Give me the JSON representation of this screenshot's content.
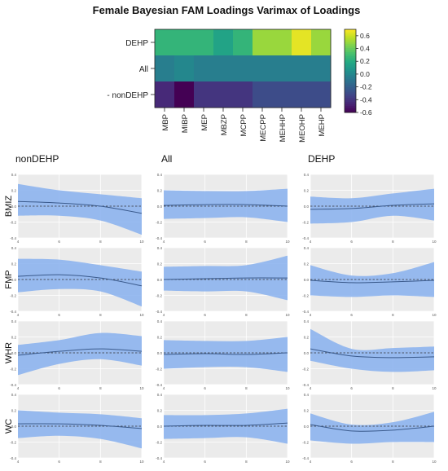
{
  "chart_data": [
    {
      "type": "heatmap",
      "title": "Female Bayesian FAM Loadings Varimax of Loadings",
      "rows": [
        "DEHP",
        "All",
        "nonDEHP"
      ],
      "columns": [
        "MBP",
        "MIBP",
        "MEP",
        "MBZP",
        "MCPP",
        "MECPP",
        "MEHHP",
        "MEOHP",
        "MEHP"
      ],
      "values": [
        [
          0.25,
          0.25,
          0.25,
          0.15,
          0.25,
          0.5,
          0.5,
          0.65,
          0.5
        ],
        [
          -0.05,
          0.0,
          -0.05,
          -0.05,
          -0.05,
          -0.05,
          -0.05,
          -0.05,
          -0.05
        ],
        [
          -0.45,
          -0.6,
          -0.4,
          -0.4,
          -0.4,
          -0.3,
          -0.3,
          -0.3,
          -0.3
        ]
      ],
      "colorbar": {
        "range": [
          -0.6,
          0.7
        ],
        "ticks": [
          "0.6",
          "0.4",
          "0.2",
          "0.0",
          "-0.2",
          "-0.4",
          "-0.6"
        ]
      },
      "colorscale": [
        "#440154",
        "#482475",
        "#414487",
        "#355f8d",
        "#2a788e",
        "#21918c",
        "#22a884",
        "#44bf70",
        "#7ad151",
        "#bddf26",
        "#fde725"
      ],
      "row_marker": "-"
    },
    {
      "type": "line",
      "description_of_bands": "mean curve with shaded credible band",
      "col_labels": [
        "nonDEHP",
        "All",
        "DEHP"
      ],
      "row_labels": [
        "BMIZ",
        "FMP",
        "WHR",
        "WC"
      ],
      "x": [
        4,
        6,
        8,
        10
      ],
      "x_ticks": [
        "4",
        "6",
        "8",
        "10"
      ],
      "ylim": [
        -0.4,
        0.4
      ],
      "y_ticks": [
        "0.4",
        "0.2",
        "0.0",
        "-0.2",
        "-0.4"
      ],
      "reference_line": 0,
      "band_color": "#8db4ee",
      "line_color": "#3a5a8c",
      "panels": [
        [
          {
            "mean": [
              0.06,
              0.04,
              0.0,
              -0.09
            ],
            "lower": [
              -0.12,
              -0.12,
              -0.18,
              -0.36
            ],
            "upper": [
              0.28,
              0.2,
              0.15,
              0.1
            ]
          },
          {
            "mean": [
              0.01,
              0.02,
              0.02,
              0.0
            ],
            "lower": [
              -0.16,
              -0.15,
              -0.14,
              -0.2
            ],
            "upper": [
              0.2,
              0.19,
              0.19,
              0.22
            ]
          },
          {
            "mean": [
              -0.04,
              -0.03,
              0.01,
              0.03
            ],
            "lower": [
              -0.22,
              -0.2,
              -0.12,
              -0.18
            ],
            "upper": [
              0.12,
              0.1,
              0.16,
              0.22
            ]
          }
        ],
        [
          {
            "mean": [
              0.04,
              0.06,
              0.02,
              -0.08
            ],
            "lower": [
              -0.16,
              -0.12,
              -0.15,
              -0.34
            ],
            "upper": [
              0.26,
              0.25,
              0.18,
              0.1
            ]
          },
          {
            "mean": [
              0.0,
              0.01,
              0.02,
              0.02
            ],
            "lower": [
              -0.14,
              -0.15,
              -0.15,
              -0.26
            ],
            "upper": [
              0.16,
              0.17,
              0.18,
              0.3
            ]
          },
          {
            "mean": [
              -0.01,
              -0.04,
              -0.03,
              -0.01
            ],
            "lower": [
              -0.2,
              -0.22,
              -0.2,
              -0.22
            ],
            "upper": [
              0.18,
              0.05,
              0.08,
              0.22
            ]
          }
        ],
        [
          {
            "mean": [
              -0.03,
              0.02,
              0.05,
              0.02
            ],
            "lower": [
              -0.28,
              -0.14,
              -0.08,
              -0.16
            ],
            "upper": [
              0.1,
              0.16,
              0.25,
              0.21
            ]
          },
          {
            "mean": [
              -0.02,
              -0.01,
              -0.02,
              0.0
            ],
            "lower": [
              -0.2,
              -0.18,
              -0.18,
              -0.24
            ],
            "upper": [
              0.16,
              0.15,
              0.15,
              0.2
            ]
          },
          {
            "mean": [
              0.05,
              -0.04,
              -0.06,
              -0.05
            ],
            "lower": [
              -0.1,
              -0.2,
              -0.24,
              -0.22
            ],
            "upper": [
              0.3,
              0.05,
              0.06,
              0.08
            ]
          }
        ],
        [
          {
            "mean": [
              0.03,
              0.03,
              0.01,
              -0.03
            ],
            "lower": [
              -0.15,
              -0.12,
              -0.16,
              -0.28
            ],
            "upper": [
              0.2,
              0.17,
              0.15,
              0.1
            ]
          },
          {
            "mean": [
              0.0,
              0.01,
              0.01,
              0.04
            ],
            "lower": [
              -0.16,
              -0.15,
              -0.14,
              -0.22
            ],
            "upper": [
              0.14,
              0.14,
              0.16,
              0.22
            ]
          },
          {
            "mean": [
              0.02,
              -0.06,
              -0.05,
              0.0
            ],
            "lower": [
              -0.18,
              -0.22,
              -0.2,
              -0.2
            ],
            "upper": [
              0.16,
              0.02,
              0.05,
              0.18
            ]
          }
        ]
      ]
    }
  ]
}
